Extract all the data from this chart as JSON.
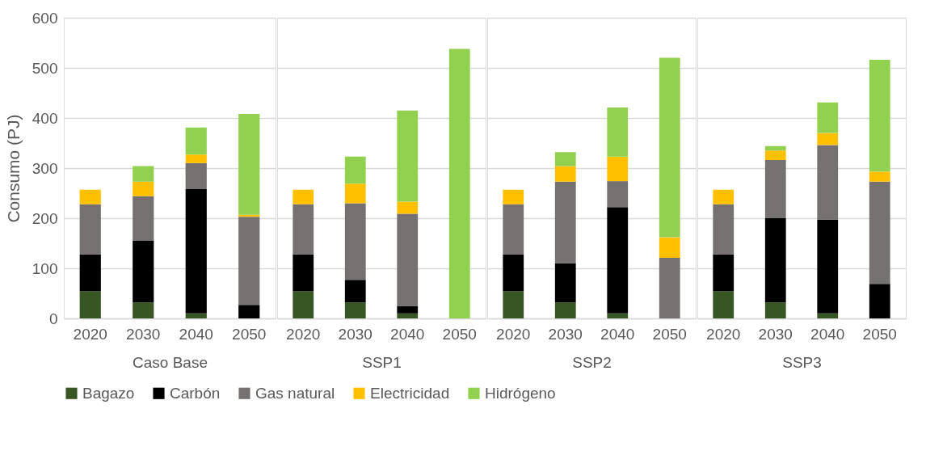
{
  "chart_data": [
    {
      "type": "bar",
      "stacked": true,
      "xlabel": "Caso Base",
      "ylabel": "Consumo (PJ)",
      "categories": [
        "2020",
        "2030",
        "2040",
        "2050"
      ],
      "ylim": [
        0,
        600
      ],
      "yticks": [
        0,
        100,
        200,
        300,
        400,
        500,
        600
      ],
      "grid": "y",
      "legend": "bottom",
      "series": [
        {
          "name": "Bagazo",
          "color": "#375623",
          "values": [
            54,
            32,
            10,
            0
          ]
        },
        {
          "name": "Carbón",
          "color": "#000000",
          "values": [
            74,
            123,
            248,
            27
          ]
        },
        {
          "name": "Gas natural",
          "color": "#767171",
          "values": [
            100,
            89,
            52,
            176
          ]
        },
        {
          "name": "Electricidad",
          "color": "#ffc000",
          "values": [
            29,
            29,
            17,
            4
          ]
        },
        {
          "name": "Hidrógeno",
          "color": "#92d050",
          "values": [
            0,
            31,
            54,
            201
          ]
        }
      ]
    },
    {
      "type": "bar",
      "stacked": true,
      "xlabel": "SSP1",
      "categories": [
        "2020",
        "2030",
        "2040",
        "2050"
      ],
      "ylim": [
        0,
        600
      ],
      "yticks": [
        0,
        100,
        200,
        300,
        400,
        500,
        600
      ],
      "grid": "y",
      "tick_labels": "x",
      "series": [
        {
          "name": "Bagazo",
          "color": "#375623",
          "values": [
            54,
            32,
            10,
            0
          ]
        },
        {
          "name": "Carbón",
          "color": "#000000",
          "values": [
            74,
            45,
            15,
            0
          ]
        },
        {
          "name": "Gas natural",
          "color": "#767171",
          "values": [
            100,
            153,
            184,
            0
          ]
        },
        {
          "name": "Electricidad",
          "color": "#ffc000",
          "values": [
            29,
            39,
            24,
            0
          ]
        },
        {
          "name": "Hidrógeno",
          "color": "#92d050",
          "values": [
            0,
            54,
            182,
            538
          ]
        }
      ]
    },
    {
      "type": "bar",
      "stacked": true,
      "xlabel": "SSP2",
      "categories": [
        "2020",
        "2030",
        "2040",
        "2050"
      ],
      "ylim": [
        0,
        600
      ],
      "yticks": [
        0,
        100,
        200,
        300,
        400,
        500,
        600
      ],
      "grid": "y",
      "tick_labels": "x",
      "series": [
        {
          "name": "Bagazo",
          "color": "#375623",
          "values": [
            54,
            32,
            10,
            0
          ]
        },
        {
          "name": "Carbón",
          "color": "#000000",
          "values": [
            74,
            78,
            212,
            0
          ]
        },
        {
          "name": "Gas natural",
          "color": "#767171",
          "values": [
            100,
            163,
            52,
            121
          ]
        },
        {
          "name": "Electricidad",
          "color": "#ffc000",
          "values": [
            29,
            31,
            49,
            41
          ]
        },
        {
          "name": "Hidrógeno",
          "color": "#92d050",
          "values": [
            0,
            28,
            98,
            358
          ]
        }
      ]
    },
    {
      "type": "bar",
      "stacked": true,
      "xlabel": "SSP3",
      "categories": [
        "2020",
        "2030",
        "2040",
        "2050"
      ],
      "ylim": [
        0,
        600
      ],
      "yticks": [
        0,
        100,
        200,
        300,
        400,
        500,
        600
      ],
      "grid": "y",
      "tick_labels": "x",
      "series": [
        {
          "name": "Bagazo",
          "color": "#375623",
          "values": [
            54,
            32,
            10,
            0
          ]
        },
        {
          "name": "Carbón",
          "color": "#000000",
          "values": [
            74,
            168,
            187,
            69
          ]
        },
        {
          "name": "Gas natural",
          "color": "#767171",
          "values": [
            100,
            116,
            149,
            204
          ]
        },
        {
          "name": "Electricidad",
          "color": "#ffc000",
          "values": [
            29,
            19,
            24,
            20
          ]
        },
        {
          "name": "Hidrógeno",
          "color": "#92d050",
          "values": [
            0,
            9,
            61,
            223
          ]
        }
      ]
    }
  ]
}
